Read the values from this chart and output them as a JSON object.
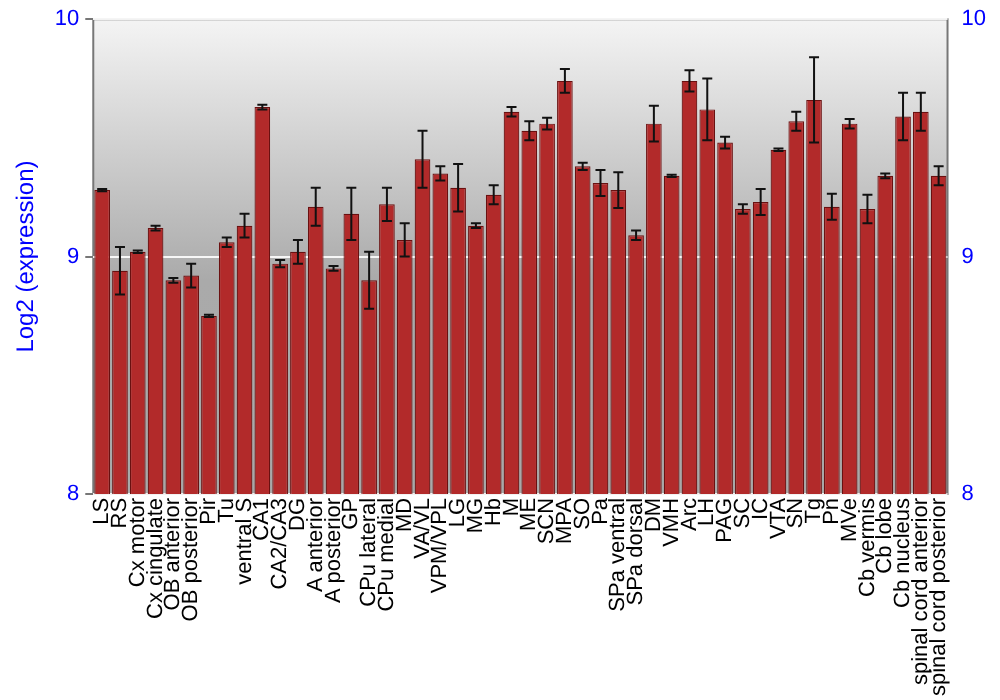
{
  "chart_data": {
    "type": "bar",
    "ylabel": "Log2 (expression)",
    "categories": [
      "LS",
      "RS",
      "Cx motor",
      "Cx cingulate",
      "OB anterior",
      "OB posterior",
      "Pir",
      "Tu",
      "ventral S",
      "CA1",
      "CA2/CA3",
      "DG",
      "A anterior",
      "A posterior",
      "GP",
      "CPu lateral",
      "CPu medial",
      "MD",
      "VA/VL",
      "VPM/VPL",
      "LG",
      "MG",
      "Hb",
      "M",
      "ME",
      "SCN",
      "MPA",
      "SO",
      "Pa",
      "SPa ventral",
      "SPa dorsal",
      "DM",
      "VMH",
      "Arc",
      "LH",
      "PAG",
      "SC",
      "IC",
      "VTA",
      "SN",
      "Tg",
      "Pn",
      "MVe",
      "Cb vermis",
      "Cb lobe",
      "Cb nucleus",
      "spinal cord anterior",
      "spinal cord posterior"
    ],
    "values": [
      9.28,
      8.94,
      9.02,
      9.12,
      8.9,
      8.92,
      8.75,
      9.06,
      9.13,
      9.63,
      8.97,
      9.02,
      9.21,
      8.95,
      9.18,
      8.9,
      9.22,
      9.07,
      9.41,
      9.35,
      9.29,
      9.13,
      9.26,
      9.61,
      9.53,
      9.56,
      9.74,
      9.38,
      9.31,
      9.28,
      9.09,
      9.56,
      9.34,
      9.74,
      9.62,
      9.48,
      9.2,
      9.23,
      9.45,
      9.57,
      9.66,
      9.21,
      9.56,
      9.2,
      9.34,
      9.59,
      9.61,
      9.34
    ],
    "errors": [
      0.005,
      0.1,
      0.005,
      0.01,
      0.01,
      0.05,
      0.005,
      0.02,
      0.05,
      0.01,
      0.015,
      0.05,
      0.08,
      0.01,
      0.11,
      0.12,
      0.07,
      0.07,
      0.12,
      0.03,
      0.1,
      0.01,
      0.04,
      0.02,
      0.04,
      0.025,
      0.05,
      0.015,
      0.055,
      0.075,
      0.02,
      0.075,
      0.005,
      0.045,
      0.13,
      0.025,
      0.02,
      0.055,
      0.005,
      0.04,
      0.18,
      0.055,
      0.02,
      0.06,
      0.01,
      0.1,
      0.08,
      0.04
    ],
    "color": "#b22a2a",
    "ylim": [
      8,
      10
    ],
    "yticks": [
      8,
      9,
      10
    ],
    "y2lim": [
      8,
      10
    ],
    "y2ticks": [
      8,
      9,
      10
    ],
    "grid": "y",
    "legend": false
  }
}
